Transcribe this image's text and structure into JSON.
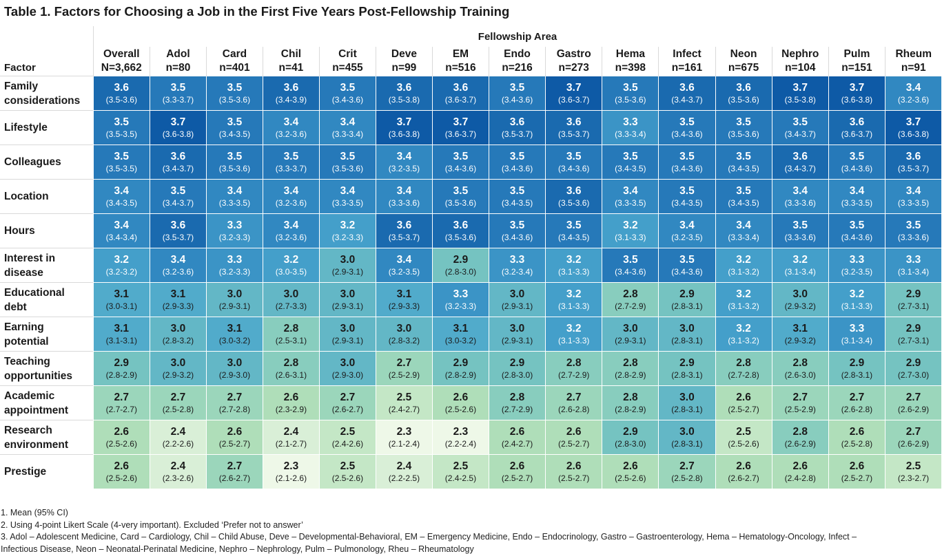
{
  "title": "Table 1. Factors for Choosing a Job in the First Five Years Post-Fellowship Training",
  "chart_data": {
    "type": "heatmap",
    "column_group_label": "Fellowship Area",
    "row_header": "Factor",
    "columns": [
      {
        "name": "Overall",
        "n": "N=3,662"
      },
      {
        "name": "Adol",
        "n": "n=80"
      },
      {
        "name": "Card",
        "n": "n=401"
      },
      {
        "name": "Chil",
        "n": "n=41"
      },
      {
        "name": "Crit",
        "n": "n=455"
      },
      {
        "name": "Deve",
        "n": "n=99"
      },
      {
        "name": "EM",
        "n": "n=516"
      },
      {
        "name": "Endo",
        "n": "n=216"
      },
      {
        "name": "Gastro",
        "n": "n=273"
      },
      {
        "name": "Hema",
        "n": "n=398"
      },
      {
        "name": "Infect",
        "n": "n=161"
      },
      {
        "name": "Neon",
        "n": "n=675"
      },
      {
        "name": "Nephro",
        "n": "n=104"
      },
      {
        "name": "Pulm",
        "n": "n=151"
      },
      {
        "name": "Rheum",
        "n": "n=91"
      }
    ],
    "rows": [
      {
        "factor": [
          "Family",
          "considerations"
        ],
        "cells": [
          {
            "mean": "3.6",
            "ci": "(3.5-3.6)"
          },
          {
            "mean": "3.5",
            "ci": "(3.3-3.7)"
          },
          {
            "mean": "3.5",
            "ci": "(3.5-3.6)"
          },
          {
            "mean": "3.6",
            "ci": "(3.4-3.9)"
          },
          {
            "mean": "3.5",
            "ci": "(3.4-3.6)"
          },
          {
            "mean": "3.6",
            "ci": "(3.5-3.8)"
          },
          {
            "mean": "3.6",
            "ci": "(3.6-3.7)"
          },
          {
            "mean": "3.5",
            "ci": "(3.4-3.6)"
          },
          {
            "mean": "3.7",
            "ci": "(3.6-3.7)"
          },
          {
            "mean": "3.5",
            "ci": "(3.5-3.6)"
          },
          {
            "mean": "3.6",
            "ci": "(3.4-3.7)"
          },
          {
            "mean": "3.6",
            "ci": "(3.5-3.6)"
          },
          {
            "mean": "3.7",
            "ci": "(3.5-3.8)"
          },
          {
            "mean": "3.7",
            "ci": "(3.6-3.8)"
          },
          {
            "mean": "3.4",
            "ci": "(3.2-3.6)"
          }
        ]
      },
      {
        "factor": [
          "Lifestyle"
        ],
        "cells": [
          {
            "mean": "3.5",
            "ci": "(3.5-3.5)"
          },
          {
            "mean": "3.7",
            "ci": "(3.6-3.8)"
          },
          {
            "mean": "3.5",
            "ci": "(3.4-3.5)"
          },
          {
            "mean": "3.4",
            "ci": "(3.2-3.6)"
          },
          {
            "mean": "3.4",
            "ci": "(3.3-3.4)"
          },
          {
            "mean": "3.7",
            "ci": "(3.6-3.8)"
          },
          {
            "mean": "3.7",
            "ci": "(3.6-3.7)"
          },
          {
            "mean": "3.6",
            "ci": "(3.5-3.7)"
          },
          {
            "mean": "3.6",
            "ci": "(3.5-3.7)"
          },
          {
            "mean": "3.3",
            "ci": "(3.3-3.4)"
          },
          {
            "mean": "3.5",
            "ci": "(3.4-3.6)"
          },
          {
            "mean": "3.5",
            "ci": "(3.5-3.6)"
          },
          {
            "mean": "3.5",
            "ci": "(3.4-3.7)"
          },
          {
            "mean": "3.6",
            "ci": "(3.6-3.7)"
          },
          {
            "mean": "3.7",
            "ci": "(3.6-3.8)"
          }
        ]
      },
      {
        "factor": [
          "Colleagues"
        ],
        "cells": [
          {
            "mean": "3.5",
            "ci": "(3.5-3.5)"
          },
          {
            "mean": "3.6",
            "ci": "(3.4-3.7)"
          },
          {
            "mean": "3.5",
            "ci": "(3.5-3.6)"
          },
          {
            "mean": "3.5",
            "ci": "(3.3-3.7)"
          },
          {
            "mean": "3.5",
            "ci": "(3.5-3.6)"
          },
          {
            "mean": "3.4",
            "ci": "(3.2-3.5)"
          },
          {
            "mean": "3.5",
            "ci": "(3.4-3.6)"
          },
          {
            "mean": "3.5",
            "ci": "(3.4-3.6)"
          },
          {
            "mean": "3.5",
            "ci": "(3.4-3.6)"
          },
          {
            "mean": "3.5",
            "ci": "(3.4-3.5)"
          },
          {
            "mean": "3.5",
            "ci": "(3.4-3.6)"
          },
          {
            "mean": "3.5",
            "ci": "(3.4-3.5)"
          },
          {
            "mean": "3.6",
            "ci": "(3.4-3.7)"
          },
          {
            "mean": "3.5",
            "ci": "(3.4-3.6)"
          },
          {
            "mean": "3.6",
            "ci": "(3.5-3.7)"
          }
        ]
      },
      {
        "factor": [
          "Location"
        ],
        "cells": [
          {
            "mean": "3.4",
            "ci": "(3.4-3.5)"
          },
          {
            "mean": "3.5",
            "ci": "(3.4-3.7)"
          },
          {
            "mean": "3.4",
            "ci": "(3.3-3.5)"
          },
          {
            "mean": "3.4",
            "ci": "(3.2-3.6)"
          },
          {
            "mean": "3.4",
            "ci": "(3.3-3.5)"
          },
          {
            "mean": "3.4",
            "ci": "(3.3-3.6)"
          },
          {
            "mean": "3.5",
            "ci": "(3.5-3.6)"
          },
          {
            "mean": "3.5",
            "ci": "(3.4-3.5)"
          },
          {
            "mean": "3.6",
            "ci": "(3.5-3.6)"
          },
          {
            "mean": "3.4",
            "ci": "(3.3-3.5)"
          },
          {
            "mean": "3.5",
            "ci": "(3.4-3.5)"
          },
          {
            "mean": "3.5",
            "ci": "(3.4-3.5)"
          },
          {
            "mean": "3.4",
            "ci": "(3.3-3.6)"
          },
          {
            "mean": "3.4",
            "ci": "(3.3-3.5)"
          },
          {
            "mean": "3.4",
            "ci": "(3.3-3.5)"
          }
        ]
      },
      {
        "factor": [
          "Hours"
        ],
        "cells": [
          {
            "mean": "3.4",
            "ci": "(3.4-3.4)"
          },
          {
            "mean": "3.6",
            "ci": "(3.5-3.7)"
          },
          {
            "mean": "3.3",
            "ci": "(3.2-3.3)"
          },
          {
            "mean": "3.4",
            "ci": "(3.2-3.6)"
          },
          {
            "mean": "3.2",
            "ci": "(3.2-3.3)"
          },
          {
            "mean": "3.6",
            "ci": "(3.5-3.7)"
          },
          {
            "mean": "3.6",
            "ci": "(3.5-3.6)"
          },
          {
            "mean": "3.5",
            "ci": "(3.4-3.6)"
          },
          {
            "mean": "3.5",
            "ci": "(3.4-3.5)"
          },
          {
            "mean": "3.2",
            "ci": "(3.1-3.3)"
          },
          {
            "mean": "3.4",
            "ci": "(3.2-3.5)"
          },
          {
            "mean": "3.4",
            "ci": "(3.3-3.4)"
          },
          {
            "mean": "3.5",
            "ci": "(3.3-3.6)"
          },
          {
            "mean": "3.5",
            "ci": "(3.4-3.6)"
          },
          {
            "mean": "3.5",
            "ci": "(3.3-3.6)"
          }
        ]
      },
      {
        "factor": [
          "Interest in",
          "disease"
        ],
        "cells": [
          {
            "mean": "3.2",
            "ci": "(3.2-3.2)"
          },
          {
            "mean": "3.4",
            "ci": "(3.2-3.6)"
          },
          {
            "mean": "3.3",
            "ci": "(3.2-3.3)"
          },
          {
            "mean": "3.2",
            "ci": "(3.0-3.5)"
          },
          {
            "mean": "3.0",
            "ci": "(2.9-3.1)"
          },
          {
            "mean": "3.4",
            "ci": "(3.2-3.5)"
          },
          {
            "mean": "2.9",
            "ci": "(2.8-3.0)"
          },
          {
            "mean": "3.3",
            "ci": "(3.2-3.4)"
          },
          {
            "mean": "3.2",
            "ci": "(3.1-3.3)"
          },
          {
            "mean": "3.5",
            "ci": "(3.4-3.6)"
          },
          {
            "mean": "3.5",
            "ci": "(3.4-3.6)"
          },
          {
            "mean": "3.2",
            "ci": "(3.1-3.2)"
          },
          {
            "mean": "3.2",
            "ci": "(3.1-3.4)"
          },
          {
            "mean": "3.3",
            "ci": "(3.2-3.5)"
          },
          {
            "mean": "3.3",
            "ci": "(3.1-3.4)"
          }
        ]
      },
      {
        "factor": [
          "Educational",
          "debt"
        ],
        "cells": [
          {
            "mean": "3.1",
            "ci": "(3.0-3.1)"
          },
          {
            "mean": "3.1",
            "ci": "(2.9-3.3)"
          },
          {
            "mean": "3.0",
            "ci": "(2.9-3.1)"
          },
          {
            "mean": "3.0",
            "ci": "(2.7-3.3)"
          },
          {
            "mean": "3.0",
            "ci": "(2.9-3.1)"
          },
          {
            "mean": "3.1",
            "ci": "(2.9-3.3)"
          },
          {
            "mean": "3.3",
            "ci": "(3.2-3.3)"
          },
          {
            "mean": "3.0",
            "ci": "(2.9-3.1)"
          },
          {
            "mean": "3.2",
            "ci": "(3.1-3.3)"
          },
          {
            "mean": "2.8",
            "ci": "(2.7-2.9)"
          },
          {
            "mean": "2.9",
            "ci": "(2.8-3.1)"
          },
          {
            "mean": "3.2",
            "ci": "(3.1-3.2)"
          },
          {
            "mean": "3.0",
            "ci": "(2.9-3.2)"
          },
          {
            "mean": "3.2",
            "ci": "(3.1-3.3)"
          },
          {
            "mean": "2.9",
            "ci": "(2.7-3.1)"
          }
        ]
      },
      {
        "factor": [
          "Earning",
          "potential"
        ],
        "cells": [
          {
            "mean": "3.1",
            "ci": "(3.1-3.1)"
          },
          {
            "mean": "3.0",
            "ci": "(2.8-3.2)"
          },
          {
            "mean": "3.1",
            "ci": "(3.0-3.2)"
          },
          {
            "mean": "2.8",
            "ci": "(2.5-3.1)"
          },
          {
            "mean": "3.0",
            "ci": "(2.9-3.1)"
          },
          {
            "mean": "3.0",
            "ci": "(2.8-3.2)"
          },
          {
            "mean": "3.1",
            "ci": "(3.0-3.2)"
          },
          {
            "mean": "3.0",
            "ci": "(2.9-3.1)"
          },
          {
            "mean": "3.2",
            "ci": "(3.1-3.3)"
          },
          {
            "mean": "3.0",
            "ci": "(2.9-3.1)"
          },
          {
            "mean": "3.0",
            "ci": "(2.8-3.1)"
          },
          {
            "mean": "3.2",
            "ci": "(3.1-3.2)"
          },
          {
            "mean": "3.1",
            "ci": "(2.9-3.2)"
          },
          {
            "mean": "3.3",
            "ci": "(3.1-3.4)"
          },
          {
            "mean": "2.9",
            "ci": "(2.7-3.1)"
          }
        ]
      },
      {
        "factor": [
          "Teaching",
          "opportunities"
        ],
        "cells": [
          {
            "mean": "2.9",
            "ci": "(2.8-2.9)"
          },
          {
            "mean": "3.0",
            "ci": "(2.9-3.2)"
          },
          {
            "mean": "3.0",
            "ci": "(2.9-3.0)"
          },
          {
            "mean": "2.8",
            "ci": "(2.6-3.1)"
          },
          {
            "mean": "3.0",
            "ci": "(2.9-3.0)"
          },
          {
            "mean": "2.7",
            "ci": "(2.5-2.9)"
          },
          {
            "mean": "2.9",
            "ci": "(2.8-2.9)"
          },
          {
            "mean": "2.9",
            "ci": "(2.8-3.0)"
          },
          {
            "mean": "2.8",
            "ci": "(2.7-2.9)"
          },
          {
            "mean": "2.8",
            "ci": "(2.8-2.9)"
          },
          {
            "mean": "2.9",
            "ci": "(2.8-3.1)"
          },
          {
            "mean": "2.8",
            "ci": "(2.7-2.8)"
          },
          {
            "mean": "2.8",
            "ci": "(2.6-3.0)"
          },
          {
            "mean": "2.9",
            "ci": "(2.8-3.1)"
          },
          {
            "mean": "2.9",
            "ci": "(2.7-3.0)"
          }
        ]
      },
      {
        "factor": [
          "Academic",
          "appointment"
        ],
        "cells": [
          {
            "mean": "2.7",
            "ci": "(2.7-2.7)"
          },
          {
            "mean": "2.7",
            "ci": "(2.5-2.8)"
          },
          {
            "mean": "2.7",
            "ci": "(2.7-2.8)"
          },
          {
            "mean": "2.6",
            "ci": "(2.3-2.9)"
          },
          {
            "mean": "2.7",
            "ci": "(2.6-2.7)"
          },
          {
            "mean": "2.5",
            "ci": "(2.4-2.7)"
          },
          {
            "mean": "2.6",
            "ci": "(2.5-2.6)"
          },
          {
            "mean": "2.8",
            "ci": "(2.7-2.9)"
          },
          {
            "mean": "2.7",
            "ci": "(2.6-2.8)"
          },
          {
            "mean": "2.8",
            "ci": "(2.8-2.9)"
          },
          {
            "mean": "3.0",
            "ci": "(2.8-3.1)"
          },
          {
            "mean": "2.6",
            "ci": "(2.5-2.7)"
          },
          {
            "mean": "2.7",
            "ci": "(2.5-2.9)"
          },
          {
            "mean": "2.7",
            "ci": "(2.6-2.8)"
          },
          {
            "mean": "2.7",
            "ci": "(2.6-2.9)"
          }
        ]
      },
      {
        "factor": [
          "Research",
          "environment"
        ],
        "cells": [
          {
            "mean": "2.6",
            "ci": "(2.5-2.6)"
          },
          {
            "mean": "2.4",
            "ci": "(2.2-2.6)"
          },
          {
            "mean": "2.6",
            "ci": "(2.5-2.7)"
          },
          {
            "mean": "2.4",
            "ci": "(2.1-2.7)"
          },
          {
            "mean": "2.5",
            "ci": "(2.4-2.6)"
          },
          {
            "mean": "2.3",
            "ci": "(2.1-2.4)"
          },
          {
            "mean": "2.3",
            "ci": "(2.2-2.4)"
          },
          {
            "mean": "2.6",
            "ci": "(2.4-2.7)"
          },
          {
            "mean": "2.6",
            "ci": "(2.5-2.7)"
          },
          {
            "mean": "2.9",
            "ci": "(2.8-3.0)"
          },
          {
            "mean": "3.0",
            "ci": "(2.8-3.1)"
          },
          {
            "mean": "2.5",
            "ci": "(2.5-2.6)"
          },
          {
            "mean": "2.8",
            "ci": "(2.6-2.9)"
          },
          {
            "mean": "2.6",
            "ci": "(2.5-2.8)"
          },
          {
            "mean": "2.7",
            "ci": "(2.6-2.9)"
          }
        ]
      },
      {
        "factor": [
          "Prestige"
        ],
        "cells": [
          {
            "mean": "2.6",
            "ci": "(2.5-2.6)"
          },
          {
            "mean": "2.4",
            "ci": "(2.3-2.6)"
          },
          {
            "mean": "2.7",
            "ci": "(2.6-2.7)"
          },
          {
            "mean": "2.3",
            "ci": "(2.1-2.6)"
          },
          {
            "mean": "2.5",
            "ci": "(2.5-2.6)"
          },
          {
            "mean": "2.4",
            "ci": "(2.2-2.5)"
          },
          {
            "mean": "2.5",
            "ci": "(2.4-2.5)"
          },
          {
            "mean": "2.6",
            "ci": "(2.5-2.7)"
          },
          {
            "mean": "2.6",
            "ci": "(2.5-2.7)"
          },
          {
            "mean": "2.6",
            "ci": "(2.5-2.6)"
          },
          {
            "mean": "2.7",
            "ci": "(2.5-2.8)"
          },
          {
            "mean": "2.6",
            "ci": "(2.6-2.7)"
          },
          {
            "mean": "2.6",
            "ci": "(2.4-2.8)"
          },
          {
            "mean": "2.6",
            "ci": "(2.5-2.7)"
          },
          {
            "mean": "2.5",
            "ci": "(2.3-2.7)"
          }
        ]
      }
    ],
    "color_scale": {
      "min_value": 2.3,
      "max_value": 3.7,
      "colors": [
        "#eef8e8",
        "#b3e0b8",
        "#7cc8bf",
        "#4aa6cd",
        "#2f86c0",
        "#0e5aa6"
      ]
    }
  },
  "footnotes": [
    "1. Mean (95% CI)",
    "2. Using 4-point Likert Scale (4-very important). Excluded ‘Prefer not to answer’",
    "3. Adol – Adolescent Medicine, Card – Cardiology, Chil – Child Abuse, Deve – Developmental-Behavioral, EM – Emergency Medicine, Endo – Endocrinology, Gastro – Gastroenterology, Hema – Hematology-Oncology, Infect –",
    "Infectious Disease, Neon – Neonatal-Perinatal Medicine, Nephro – Nephrology, Pulm – Pulmonology, Rheu – Rheumatology"
  ]
}
